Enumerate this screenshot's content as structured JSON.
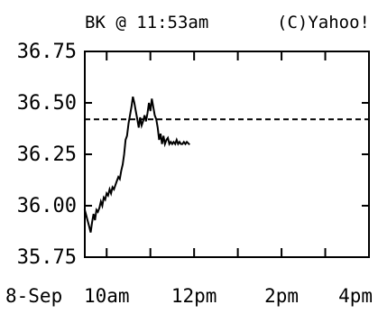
{
  "chart_data": {
    "type": "line",
    "header_left": "BK @ 11:53am",
    "header_right": "(C)Yahoo!",
    "date_label": "8-Sep",
    "xlabel": "",
    "ylabel": "",
    "x_tick_labels": [
      "10am",
      "12pm",
      "2pm",
      "4pm"
    ],
    "y_tick_labels": [
      "36.75",
      "36.50",
      "36.25",
      "36.00",
      "35.75"
    ],
    "y_ticks": [
      36.75,
      36.5,
      36.25,
      36.0,
      35.75
    ],
    "ylim": [
      35.75,
      36.75
    ],
    "x_range": [
      "09:30",
      "16:00"
    ],
    "reference_line": {
      "value": 36.42,
      "style": "dashed"
    },
    "grid": false,
    "series": [
      {
        "x": [
          "09:30",
          "09:33",
          "09:36",
          "09:38",
          "09:40",
          "09:42",
          "09:44",
          "09:46",
          "09:48",
          "09:50",
          "09:52",
          "09:54",
          "09:56",
          "09:58",
          "10:00",
          "10:02",
          "10:04",
          "10:06",
          "10:08",
          "10:10",
          "10:12",
          "10:14",
          "10:16",
          "10:18",
          "10:20",
          "10:22",
          "10:24",
          "10:26",
          "10:28",
          "10:30",
          "10:32",
          "10:34",
          "10:36",
          "10:38",
          "10:40",
          "10:42",
          "10:44",
          "10:46",
          "10:48",
          "10:50",
          "10:52",
          "10:54",
          "10:56",
          "10:58",
          "11:00",
          "11:02",
          "11:04",
          "11:06",
          "11:08",
          "11:10",
          "11:12",
          "11:14",
          "11:16",
          "11:18",
          "11:20",
          "11:22",
          "11:24",
          "11:26",
          "11:28",
          "11:30",
          "11:32",
          "11:34",
          "11:36",
          "11:38",
          "11:40",
          "11:42",
          "11:44",
          "11:46",
          "11:48",
          "11:50",
          "11:53"
        ],
        "values": [
          35.98,
          35.94,
          35.9,
          35.87,
          35.92,
          35.96,
          35.93,
          35.98,
          35.97,
          35.99,
          36.02,
          36.0,
          36.04,
          36.03,
          36.06,
          36.05,
          36.08,
          36.06,
          36.09,
          36.08,
          36.1,
          36.12,
          36.14,
          36.13,
          36.17,
          36.2,
          36.25,
          36.32,
          36.34,
          36.4,
          36.44,
          36.48,
          36.53,
          36.5,
          36.46,
          36.42,
          36.38,
          36.43,
          36.39,
          36.41,
          36.44,
          36.41,
          36.45,
          36.5,
          36.46,
          36.52,
          36.48,
          36.44,
          36.42,
          36.38,
          36.32,
          36.35,
          36.3,
          36.34,
          36.3,
          36.32,
          36.33,
          36.3,
          36.31,
          36.3,
          36.31,
          36.3,
          36.32,
          36.3,
          36.31,
          36.3,
          36.3,
          36.31,
          36.3,
          36.31,
          36.3
        ]
      }
    ]
  },
  "colors": {
    "line": "#000000",
    "background": "#ffffff"
  }
}
